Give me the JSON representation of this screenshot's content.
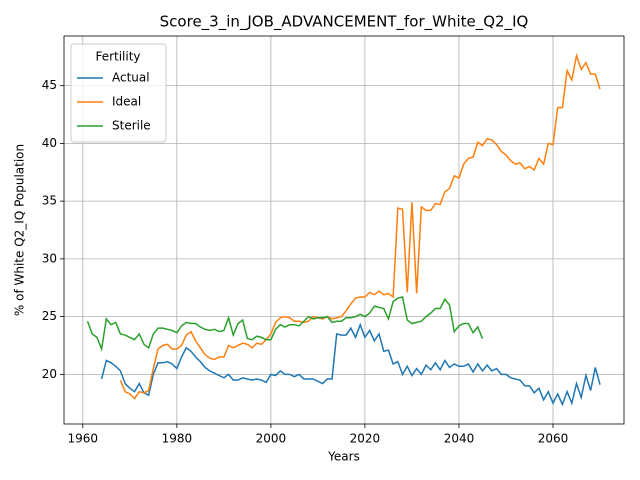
{
  "chart_data": {
    "type": "line",
    "title": "Score_3_in_JOB_ADVANCEMENT_for_White_Q2_IQ",
    "xlabel": "Years",
    "ylabel": "% of White Q2_IQ Population",
    "legend_title": "Fertility",
    "legend": "upper left",
    "grid": true,
    "xlim": [
      1956,
      2075.1
    ],
    "ylim": [
      15.7,
      49.3
    ],
    "xticks": [
      1960,
      1980,
      2000,
      2020,
      2040,
      2060
    ],
    "yticks": [
      20,
      25,
      30,
      35,
      40,
      45
    ],
    "x": [
      1961,
      1962,
      1963,
      1964,
      1965,
      1966,
      1967,
      1968,
      1969,
      1970,
      1971,
      1972,
      1973,
      1974,
      1975,
      1976,
      1977,
      1978,
      1979,
      1980,
      1981,
      1982,
      1983,
      1984,
      1985,
      1986,
      1987,
      1988,
      1989,
      1990,
      1991,
      1992,
      1993,
      1994,
      1995,
      1996,
      1997,
      1998,
      1999,
      2000,
      2001,
      2002,
      2003,
      2004,
      2005,
      2006,
      2007,
      2008,
      2009,
      2010,
      2011,
      2012,
      2013,
      2014,
      2015,
      2016,
      2017,
      2018,
      2019,
      2020,
      2021,
      2022,
      2023,
      2024,
      2025,
      2026,
      2027,
      2028,
      2029,
      2030,
      2031,
      2032,
      2033,
      2034,
      2035,
      2036,
      2037,
      2038,
      2039,
      2040,
      2041,
      2042,
      2043,
      2044,
      2045,
      2046,
      2047,
      2048,
      2049,
      2050,
      2051,
      2052,
      2053,
      2054,
      2055,
      2056,
      2057,
      2058,
      2059,
      2060,
      2061,
      2062,
      2063,
      2064,
      2065,
      2066,
      2067,
      2068,
      2069,
      2070
    ],
    "series": [
      {
        "name": "Actual",
        "color": "#1f77b4",
        "values": [
          null,
          null,
          null,
          19.6,
          21.2,
          21.0,
          20.7,
          20.3,
          19.2,
          18.8,
          18.5,
          19.2,
          18.4,
          18.2,
          20.0,
          21.0,
          21.0,
          21.1,
          20.9,
          20.5,
          21.5,
          22.3,
          22.0,
          21.5,
          21.1,
          20.6,
          20.3,
          20.1,
          19.9,
          19.7,
          20.0,
          19.5,
          19.5,
          19.7,
          19.6,
          19.5,
          19.6,
          19.5,
          19.3,
          20.0,
          19.9,
          20.3,
          20.0,
          20.0,
          19.8,
          20.0,
          19.6,
          19.6,
          19.6,
          19.4,
          19.2,
          19.6,
          19.6,
          23.5,
          23.4,
          23.4,
          24.0,
          23.2,
          24.3,
          23.2,
          23.8,
          22.9,
          23.5,
          22.0,
          22.1,
          20.9,
          21.1,
          20.0,
          20.7,
          19.9,
          20.5,
          20.0,
          20.8,
          20.4,
          21.0,
          20.4,
          21.2,
          20.6,
          20.9,
          20.7,
          20.7,
          20.9,
          20.2,
          20.9,
          20.3,
          20.8,
          20.3,
          20.5,
          20.0,
          20.0,
          19.7,
          19.6,
          19.5,
          19.0,
          19.0,
          18.4,
          18.8,
          17.8,
          18.5,
          17.5,
          18.3,
          17.4,
          18.5,
          17.5,
          19.2,
          18.0,
          19.9,
          18.6,
          20.6,
          19.1
        ]
      },
      {
        "name": "Ideal",
        "color": "#ff7f0e",
        "values": [
          null,
          null,
          null,
          null,
          null,
          null,
          null,
          19.5,
          18.5,
          18.3,
          17.9,
          18.5,
          18.4,
          18.6,
          20.5,
          22.2,
          22.5,
          22.6,
          22.2,
          22.2,
          22.5,
          23.4,
          23.7,
          22.9,
          22.3,
          21.7,
          21.4,
          21.3,
          21.5,
          21.5,
          22.5,
          22.3,
          22.5,
          22.7,
          22.6,
          22.3,
          22.7,
          22.6,
          23.0,
          23.5,
          24.5,
          24.9,
          25.0,
          24.9,
          24.6,
          24.6,
          24.5,
          24.6,
          25.0,
          24.9,
          24.8,
          25.0,
          24.8,
          24.9,
          25.0,
          25.5,
          26.1,
          26.6,
          26.7,
          26.7,
          27.1,
          26.9,
          27.2,
          26.9,
          27.0,
          26.7,
          34.4,
          34.3,
          27.1,
          34.9,
          27.0,
          34.5,
          34.2,
          34.2,
          34.8,
          34.7,
          35.8,
          36.1,
          37.2,
          37.0,
          38.2,
          38.7,
          38.8,
          40.1,
          39.8,
          40.4,
          40.3,
          39.9,
          39.3,
          39.0,
          38.5,
          38.2,
          38.3,
          37.8,
          38.0,
          37.7,
          38.7,
          38.2,
          40.0,
          39.9,
          43.1,
          43.1,
          46.3,
          45.5,
          47.6,
          46.4,
          47.0,
          46.0,
          46.0,
          44.7
        ]
      },
      {
        "name": "Sterile",
        "color": "#2ca02c",
        "values": [
          24.6,
          23.5,
          23.2,
          22.2,
          24.8,
          24.3,
          24.5,
          23.5,
          23.4,
          23.2,
          23.0,
          23.5,
          22.6,
          22.3,
          23.5,
          24.0,
          24.0,
          23.9,
          23.8,
          23.6,
          24.2,
          24.5,
          24.4,
          24.4,
          24.1,
          23.9,
          23.8,
          23.9,
          23.7,
          23.8,
          24.9,
          23.4,
          24.4,
          24.7,
          23.1,
          23.0,
          23.3,
          23.2,
          23.0,
          23.0,
          23.9,
          24.3,
          24.1,
          24.3,
          24.3,
          24.2,
          24.6,
          25.0,
          24.8,
          24.9,
          24.9,
          25.0,
          24.5,
          24.6,
          24.6,
          24.9,
          24.9,
          25.0,
          25.2,
          25.0,
          25.3,
          25.9,
          25.8,
          25.7,
          24.8,
          26.3,
          26.6,
          26.7,
          24.7,
          24.4,
          24.5,
          24.6,
          25.0,
          25.3,
          25.7,
          25.7,
          26.5,
          26.0,
          23.7,
          24.2,
          24.4,
          24.4,
          23.6,
          24.1,
          23.1,
          null,
          null,
          null,
          null,
          null,
          null,
          null,
          null,
          null,
          null,
          null,
          null,
          null,
          null,
          null,
          null,
          null,
          null,
          null,
          null,
          null,
          null,
          null,
          null,
          null
        ]
      }
    ]
  }
}
